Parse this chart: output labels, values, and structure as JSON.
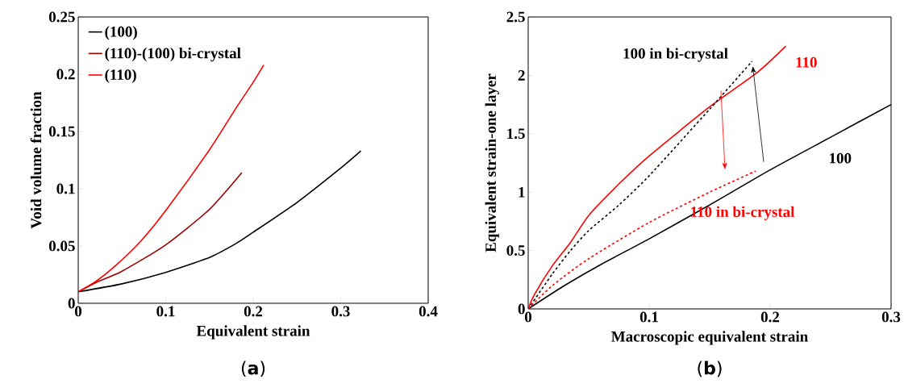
{
  "chart_data": [
    {
      "type": "line",
      "xlabel": "Equivalent strain",
      "ylabel": "Void volume fraction",
      "xlim": [
        0,
        0.4
      ],
      "ylim": [
        0,
        0.25
      ],
      "xticks": [
        0,
        0.1,
        0.2,
        0.3,
        0.4
      ],
      "yticks": [
        0,
        0.05,
        0.1,
        0.15,
        0.2,
        0.25
      ],
      "grid": false,
      "legend": "top left",
      "marker": "none",
      "annotations": [
        "(**a**)"
      ],
      "series": [
        {
          "name": "(100)",
          "color": "#000000",
          "x": [
            0,
            0.05,
            0.1,
            0.15,
            0.18,
            0.2,
            0.25,
            0.3,
            0.323
          ],
          "values": [
            0.01,
            0.017,
            0.027,
            0.04,
            0.052,
            0.062,
            0.088,
            0.118,
            0.133
          ]
        },
        {
          "name": "(110)-(100) bi-crystal",
          "color": "#a00000",
          "x": [
            0,
            0.02,
            0.05,
            0.1,
            0.15,
            0.187
          ],
          "values": [
            0.01,
            0.018,
            0.028,
            0.051,
            0.082,
            0.114
          ]
        },
        {
          "name": "(110)",
          "color": "#ff0000",
          "x": [
            0,
            0.02,
            0.04,
            0.07,
            0.1,
            0.15,
            0.18,
            0.2,
            0.212
          ],
          "values": [
            0.01,
            0.019,
            0.031,
            0.053,
            0.081,
            0.134,
            0.17,
            0.193,
            0.208
          ]
        }
      ]
    },
    {
      "type": "line",
      "xlabel": "Macroscopic equivalent strain",
      "ylabel": "Equivalent strain-one layer",
      "xlim": [
        0,
        0.3
      ],
      "ylim": [
        0,
        2.5
      ],
      "xticks": [
        0,
        0.1,
        0.2,
        0.3
      ],
      "yticks": [
        0,
        0.5,
        1,
        1.5,
        2,
        2.5
      ],
      "grid": false,
      "legend": false,
      "marker": "none",
      "annotations": [
        "(**b**)"
      ],
      "series": [
        {
          "name": "100",
          "color": "#000000",
          "line_style": "solid",
          "x": [
            0,
            0.03,
            0.06,
            0.1,
            0.15,
            0.2,
            0.25,
            0.3
          ],
          "values": [
            0,
            0.2,
            0.38,
            0.6,
            0.89,
            1.19,
            1.47,
            1.75
          ]
        },
        {
          "name": "110",
          "color": "#ff0000",
          "line_style": "solid",
          "x": [
            0,
            0.005,
            0.02,
            0.035,
            0.05,
            0.075,
            0.1,
            0.15,
            0.19,
            0.213
          ],
          "values": [
            0,
            0.12,
            0.37,
            0.57,
            0.8,
            1.07,
            1.31,
            1.73,
            2.03,
            2.25
          ]
        },
        {
          "name": "100 in bi-crystal",
          "color": "#000000",
          "line_style": "dashed",
          "x": [
            0,
            0.02,
            0.035,
            0.05,
            0.075,
            0.1,
            0.15,
            0.185
          ],
          "values": [
            0,
            0.3,
            0.5,
            0.67,
            0.89,
            1.14,
            1.71,
            2.12
          ]
        },
        {
          "name": "110 in bi-crystal",
          "color": "#ff0000",
          "line_style": "dashed",
          "x": [
            0,
            0.02,
            0.05,
            0.1,
            0.15,
            0.188
          ],
          "values": [
            0,
            0.2,
            0.43,
            0.74,
            1.0,
            1.18
          ]
        }
      ]
    }
  ]
}
